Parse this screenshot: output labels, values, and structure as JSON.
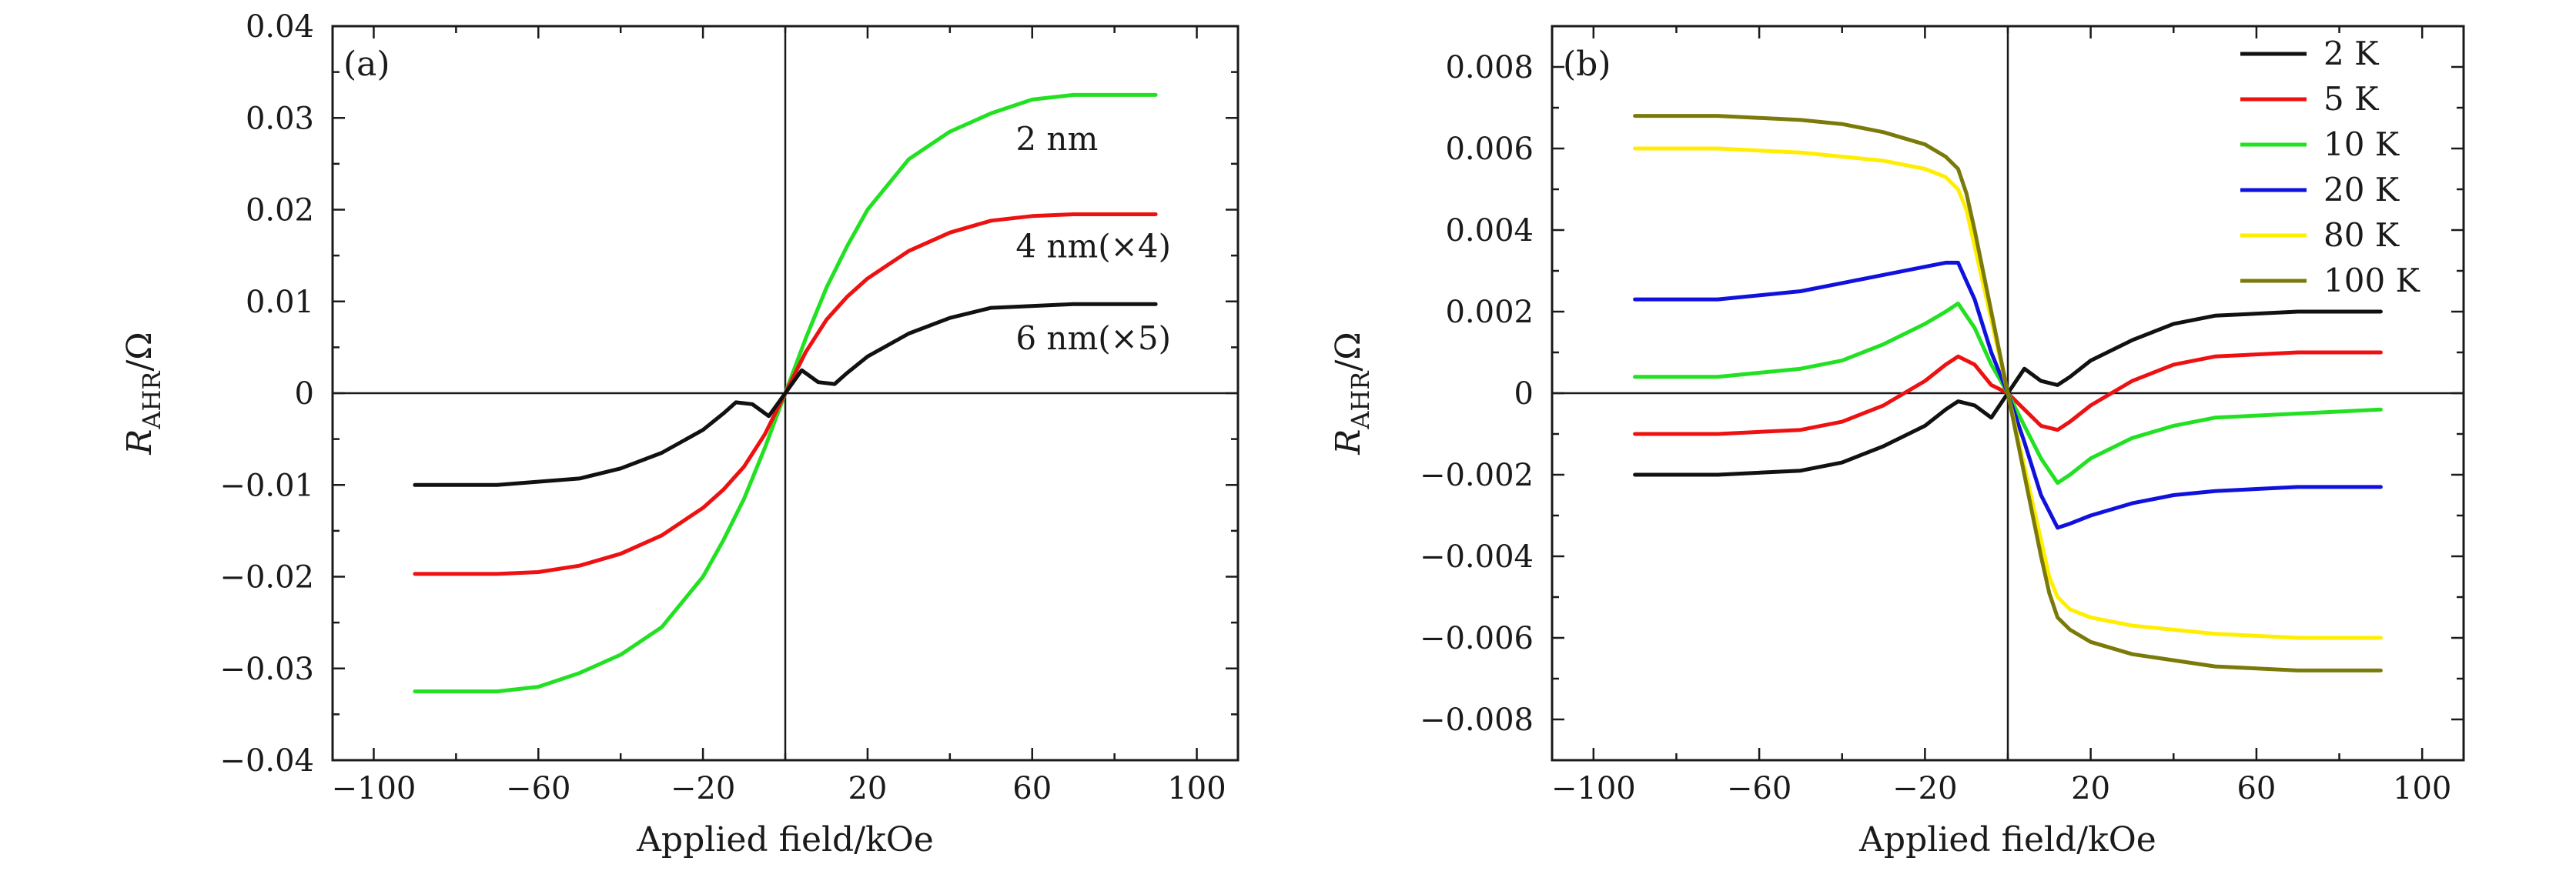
{
  "chart_data": [
    {
      "type": "line",
      "panel_label": "(a)",
      "xlabel": "Applied field/kOe",
      "ylabel_main": "R",
      "ylabel_sub": "AHR",
      "ylabel_unit": "/Ω",
      "xlim": [
        -110,
        110
      ],
      "ylim": [
        -0.04,
        0.04
      ],
      "x_ticks": [
        {
          "value": -100,
          "label": "−100"
        },
        {
          "value": -60,
          "label": "−60"
        },
        {
          "value": -20,
          "label": "−20"
        },
        {
          "value": 20,
          "label": "20"
        },
        {
          "value": 60,
          "label": "60"
        },
        {
          "value": 100,
          "label": "100"
        }
      ],
      "y_ticks": [
        {
          "value": 0.04,
          "label": "0.04"
        },
        {
          "value": 0.03,
          "label": "0.03"
        },
        {
          "value": 0.02,
          "label": "0.02"
        },
        {
          "value": 0.01,
          "label": "0.01"
        },
        {
          "value": 0,
          "label": "0"
        },
        {
          "value": -0.01,
          "label": "−0.01"
        },
        {
          "value": -0.02,
          "label": "−0.02"
        },
        {
          "value": -0.03,
          "label": "−0.03"
        },
        {
          "value": -0.04,
          "label": "−0.04"
        }
      ],
      "series": [
        {
          "name": "2 nm",
          "label": "2 nm",
          "color": "#22e022",
          "label_anchor": {
            "x": 56,
            "y": 0.0265
          },
          "x": [
            -90,
            -70,
            -60,
            -50,
            -40,
            -30,
            -20,
            -15,
            -10,
            -5,
            0,
            5,
            10,
            15,
            20,
            30,
            40,
            50,
            60,
            70,
            90
          ],
          "y": [
            -0.0325,
            -0.0325,
            -0.032,
            -0.0305,
            -0.0285,
            -0.0255,
            -0.02,
            -0.016,
            -0.0115,
            -0.006,
            0,
            0.006,
            0.0115,
            0.016,
            0.02,
            0.0255,
            0.0285,
            0.0305,
            0.032,
            0.0325,
            0.0325
          ]
        },
        {
          "name": "4 nm",
          "label": "4 nm(×4)",
          "color": "#ee1111",
          "label_anchor": {
            "x": 56,
            "y": 0.0148
          },
          "x": [
            -90,
            -70,
            -60,
            -50,
            -40,
            -30,
            -20,
            -15,
            -10,
            -5,
            0,
            5,
            10,
            15,
            20,
            30,
            40,
            50,
            60,
            70,
            90
          ],
          "y": [
            -0.0197,
            -0.0197,
            -0.0195,
            -0.0188,
            -0.0175,
            -0.0155,
            -0.0125,
            -0.0105,
            -0.008,
            -0.0045,
            0,
            0.0045,
            0.008,
            0.0105,
            0.0125,
            0.0155,
            0.0175,
            0.0188,
            0.0193,
            0.0195,
            0.0195
          ]
        },
        {
          "name": "6 nm",
          "label": "6 nm(×5)",
          "color": "#111111",
          "label_anchor": {
            "x": 56,
            "y": 0.0048
          },
          "x": [
            -90,
            -70,
            -50,
            -40,
            -30,
            -20,
            -15,
            -12,
            -8,
            -4,
            0,
            4,
            8,
            12,
            15,
            20,
            30,
            40,
            50,
            70,
            90
          ],
          "y": [
            -0.01,
            -0.01,
            -0.0093,
            -0.0082,
            -0.0065,
            -0.004,
            -0.0022,
            -0.001,
            -0.0012,
            -0.0025,
            0,
            0.0025,
            0.0012,
            0.001,
            0.0022,
            0.004,
            0.0065,
            0.0082,
            0.0093,
            0.0097,
            0.0097
          ]
        }
      ]
    },
    {
      "type": "line",
      "panel_label": "(b)",
      "xlabel": "Applied field/kOe",
      "ylabel_main": "R",
      "ylabel_sub": "AHR",
      "ylabel_unit": "/Ω",
      "xlim": [
        -110,
        110
      ],
      "ylim": [
        -0.009,
        0.009
      ],
      "legend_position": "top-right",
      "x_ticks": [
        {
          "value": -100,
          "label": "−100"
        },
        {
          "value": -60,
          "label": "−60"
        },
        {
          "value": -20,
          "label": "−20"
        },
        {
          "value": 20,
          "label": "20"
        },
        {
          "value": 60,
          "label": "60"
        },
        {
          "value": 100,
          "label": "100"
        }
      ],
      "y_ticks": [
        {
          "value": 0.008,
          "label": "0.008"
        },
        {
          "value": 0.006,
          "label": "0.006"
        },
        {
          "value": 0.004,
          "label": "0.004"
        },
        {
          "value": 0.002,
          "label": "0.002"
        },
        {
          "value": 0,
          "label": "0"
        },
        {
          "value": -0.002,
          "label": "−0.002"
        },
        {
          "value": -0.004,
          "label": "−0.004"
        },
        {
          "value": -0.006,
          "label": "−0.006"
        },
        {
          "value": -0.008,
          "label": "−0.008"
        }
      ],
      "series": [
        {
          "name": "2 K",
          "color": "#111111",
          "x": [
            -90,
            -70,
            -50,
            -40,
            -30,
            -20,
            -15,
            -12,
            -8,
            -4,
            0,
            4,
            8,
            12,
            15,
            20,
            30,
            40,
            50,
            70,
            90
          ],
          "y": [
            -0.002,
            -0.002,
            -0.0019,
            -0.0017,
            -0.0013,
            -0.0008,
            -0.0004,
            -0.0002,
            -0.0003,
            -0.0006,
            0,
            0.0006,
            0.0003,
            0.0002,
            0.0004,
            0.0008,
            0.0013,
            0.0017,
            0.0019,
            0.002,
            0.002
          ]
        },
        {
          "name": "5 K",
          "color": "#ee1111",
          "x": [
            -90,
            -70,
            -50,
            -40,
            -30,
            -20,
            -15,
            -12,
            -8,
            -4,
            0,
            4,
            8,
            12,
            15,
            20,
            30,
            40,
            50,
            70,
            90
          ],
          "y": [
            -0.001,
            -0.001,
            -0.0009,
            -0.0007,
            -0.0003,
            0.0003,
            0.0007,
            0.0009,
            0.0007,
            0.0002,
            0,
            -0.0004,
            -0.0008,
            -0.0009,
            -0.0007,
            -0.0003,
            0.0003,
            0.0007,
            0.0009,
            0.001,
            0.001
          ]
        },
        {
          "name": "10 K",
          "color": "#22e022",
          "x": [
            -90,
            -70,
            -50,
            -40,
            -30,
            -20,
            -15,
            -12,
            -8,
            -4,
            0,
            4,
            8,
            12,
            15,
            20,
            30,
            40,
            50,
            70,
            90
          ],
          "y": [
            0.0004,
            0.0004,
            0.0006,
            0.0008,
            0.0012,
            0.0017,
            0.002,
            0.0022,
            0.0016,
            0.0007,
            0,
            -0.0008,
            -0.0016,
            -0.0022,
            -0.002,
            -0.0016,
            -0.0011,
            -0.0008,
            -0.0006,
            -0.0005,
            -0.0004
          ]
        },
        {
          "name": "20 K",
          "color": "#1111dd",
          "x": [
            -90,
            -70,
            -50,
            -40,
            -30,
            -20,
            -15,
            -12,
            -8,
            -4,
            0,
            4,
            8,
            12,
            15,
            20,
            30,
            40,
            50,
            70,
            90
          ],
          "y": [
            0.0023,
            0.0023,
            0.0025,
            0.0027,
            0.0029,
            0.0031,
            0.0032,
            0.0032,
            0.0023,
            0.001,
            0,
            -0.0012,
            -0.0025,
            -0.0033,
            -0.0032,
            -0.003,
            -0.0027,
            -0.0025,
            -0.0024,
            -0.0023,
            -0.0023
          ]
        },
        {
          "name": "80 K",
          "color": "#ffee00",
          "x": [
            -90,
            -70,
            -50,
            -40,
            -30,
            -20,
            -15,
            -12,
            -10,
            -8,
            -4,
            0,
            4,
            8,
            10,
            12,
            15,
            20,
            30,
            50,
            70,
            90
          ],
          "y": [
            0.006,
            0.006,
            0.0059,
            0.0058,
            0.0057,
            0.0055,
            0.0053,
            0.005,
            0.0045,
            0.0036,
            0.0018,
            0,
            -0.0018,
            -0.0036,
            -0.0045,
            -0.005,
            -0.0053,
            -0.0055,
            -0.0057,
            -0.0059,
            -0.006,
            -0.006
          ]
        },
        {
          "name": "100 K",
          "color": "#7a7a0a",
          "x": [
            -90,
            -70,
            -50,
            -40,
            -30,
            -20,
            -15,
            -12,
            -10,
            -8,
            -4,
            0,
            4,
            8,
            10,
            12,
            15,
            20,
            30,
            50,
            70,
            90
          ],
          "y": [
            0.0068,
            0.0068,
            0.0067,
            0.0066,
            0.0064,
            0.0061,
            0.0058,
            0.0055,
            0.0049,
            0.004,
            0.002,
            0,
            -0.002,
            -0.004,
            -0.0049,
            -0.0055,
            -0.0058,
            -0.0061,
            -0.0064,
            -0.0067,
            -0.0068,
            -0.0068
          ]
        }
      ]
    }
  ]
}
